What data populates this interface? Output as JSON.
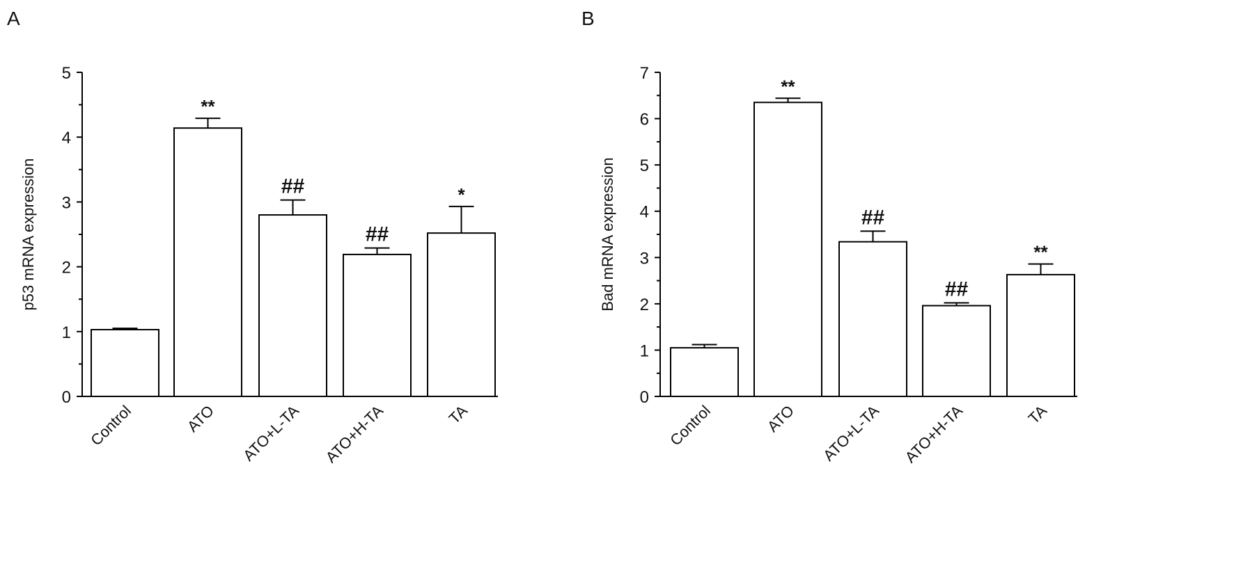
{
  "chart_data": [
    {
      "panel_label": "A",
      "type": "bar",
      "categories": [
        "Control",
        "ATO",
        "ATO+L-TA",
        "ATO+H-TA",
        "TA"
      ],
      "values": [
        1.03,
        4.14,
        2.8,
        2.19,
        2.52
      ],
      "error_upper": [
        1.05,
        4.29,
        3.03,
        2.29,
        2.93
      ],
      "annotations": [
        "",
        "**",
        "##",
        "##",
        "*"
      ],
      "ylabel": "p53 mRNA expression",
      "xlabel": "",
      "ylim": [
        0,
        5
      ],
      "yticks": [
        0,
        1,
        2,
        3,
        4,
        5
      ],
      "bar_fill": "#ffffff",
      "bar_stroke": "#000000"
    },
    {
      "panel_label": "B",
      "type": "bar",
      "categories": [
        "Control",
        "ATO",
        "ATO+L-TA",
        "ATO+H-TA",
        "TA"
      ],
      "values": [
        1.05,
        6.35,
        3.34,
        1.96,
        2.63
      ],
      "error_upper": [
        1.12,
        6.44,
        3.57,
        2.02,
        2.86
      ],
      "annotations": [
        "",
        "**",
        "##",
        "##",
        "**"
      ],
      "ylabel": "Bad mRNA expression",
      "xlabel": "",
      "ylim": [
        0,
        7
      ],
      "yticks": [
        0,
        1,
        2,
        3,
        4,
        5,
        6,
        7
      ],
      "bar_fill": "#ffffff",
      "bar_stroke": "#000000"
    }
  ]
}
